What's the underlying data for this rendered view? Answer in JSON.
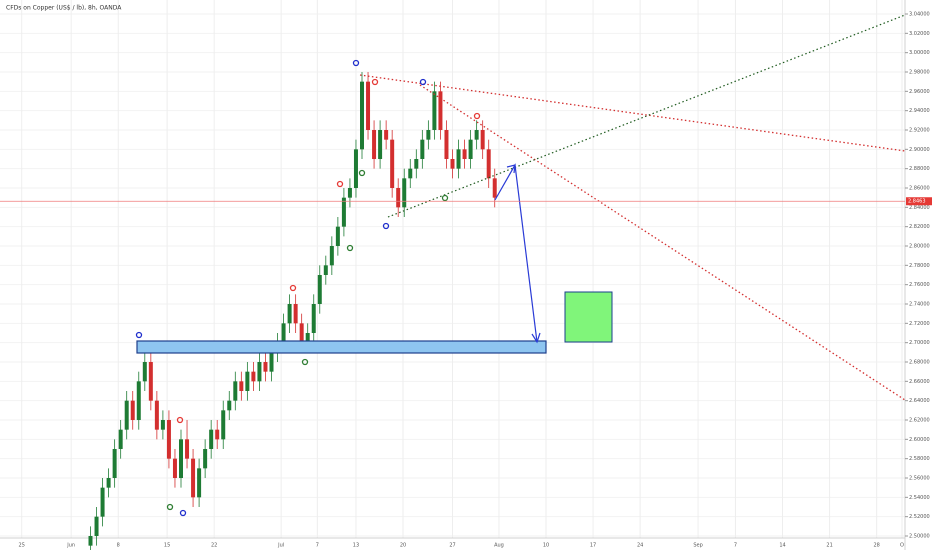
{
  "chart_data": {
    "type": "candlestick",
    "title": "CFDs on Copper (US$ / lb), 8h, OANDA",
    "up_color": "#1e7b34",
    "down_color": "#d32f2f",
    "ohlc": [
      [
        2.49,
        2.51,
        2.48,
        2.5
      ],
      [
        2.5,
        2.53,
        2.49,
        2.52
      ],
      [
        2.52,
        2.56,
        2.51,
        2.55
      ],
      [
        2.55,
        2.57,
        2.54,
        2.56
      ],
      [
        2.56,
        2.6,
        2.55,
        2.59
      ],
      [
        2.59,
        2.62,
        2.58,
        2.61
      ],
      [
        2.61,
        2.65,
        2.6,
        2.64
      ],
      [
        2.64,
        2.65,
        2.61,
        2.62
      ],
      [
        2.62,
        2.67,
        2.61,
        2.66
      ],
      [
        2.66,
        2.69,
        2.65,
        2.68
      ],
      [
        2.68,
        2.69,
        2.63,
        2.64
      ],
      [
        2.64,
        2.65,
        2.6,
        2.61
      ],
      [
        2.61,
        2.63,
        2.6,
        2.62
      ],
      [
        2.62,
        2.63,
        2.57,
        2.58
      ],
      [
        2.58,
        2.59,
        2.55,
        2.56
      ],
      [
        2.56,
        2.61,
        2.55,
        2.6
      ],
      [
        2.6,
        2.62,
        2.57,
        2.58
      ],
      [
        2.58,
        2.59,
        2.53,
        2.54
      ],
      [
        2.54,
        2.58,
        2.53,
        2.57
      ],
      [
        2.57,
        2.6,
        2.56,
        2.59
      ],
      [
        2.59,
        2.62,
        2.58,
        2.61
      ],
      [
        2.61,
        2.62,
        2.59,
        2.6
      ],
      [
        2.6,
        2.64,
        2.59,
        2.63
      ],
      [
        2.63,
        2.65,
        2.62,
        2.64
      ],
      [
        2.64,
        2.67,
        2.63,
        2.66
      ],
      [
        2.66,
        2.67,
        2.64,
        2.65
      ],
      [
        2.65,
        2.68,
        2.64,
        2.67
      ],
      [
        2.67,
        2.68,
        2.65,
        2.66
      ],
      [
        2.66,
        2.69,
        2.65,
        2.68
      ],
      [
        2.68,
        2.69,
        2.66,
        2.67
      ],
      [
        2.67,
        2.7,
        2.66,
        2.69
      ],
      [
        2.69,
        2.71,
        2.68,
        2.7
      ],
      [
        2.7,
        2.73,
        2.69,
        2.72
      ],
      [
        2.72,
        2.75,
        2.71,
        2.74
      ],
      [
        2.74,
        2.75,
        2.71,
        2.72
      ],
      [
        2.72,
        2.73,
        2.69,
        2.7
      ],
      [
        2.7,
        2.72,
        2.69,
        2.71
      ],
      [
        2.71,
        2.75,
        2.7,
        2.74
      ],
      [
        2.74,
        2.78,
        2.73,
        2.77
      ],
      [
        2.77,
        2.79,
        2.76,
        2.78
      ],
      [
        2.78,
        2.81,
        2.77,
        2.8
      ],
      [
        2.8,
        2.83,
        2.79,
        2.82
      ],
      [
        2.82,
        2.86,
        2.81,
        2.85
      ],
      [
        2.85,
        2.87,
        2.84,
        2.86
      ],
      [
        2.86,
        2.91,
        2.85,
        2.9
      ],
      [
        2.9,
        2.98,
        2.89,
        2.97
      ],
      [
        2.97,
        2.98,
        2.91,
        2.92
      ],
      [
        2.92,
        2.93,
        2.88,
        2.89
      ],
      [
        2.89,
        2.93,
        2.88,
        2.92
      ],
      [
        2.92,
        2.93,
        2.9,
        2.91
      ],
      [
        2.91,
        2.92,
        2.85,
        2.86
      ],
      [
        2.86,
        2.87,
        2.83,
        2.84
      ],
      [
        2.84,
        2.88,
        2.83,
        2.87
      ],
      [
        2.87,
        2.89,
        2.86,
        2.88
      ],
      [
        2.88,
        2.9,
        2.87,
        2.89
      ],
      [
        2.89,
        2.92,
        2.88,
        2.91
      ],
      [
        2.91,
        2.93,
        2.9,
        2.92
      ],
      [
        2.92,
        2.97,
        2.91,
        2.96
      ],
      [
        2.96,
        2.97,
        2.91,
        2.92
      ],
      [
        2.92,
        2.93,
        2.88,
        2.89
      ],
      [
        2.89,
        2.9,
        2.87,
        2.88
      ],
      [
        2.88,
        2.91,
        2.87,
        2.9
      ],
      [
        2.9,
        2.91,
        2.88,
        2.89
      ],
      [
        2.89,
        2.92,
        2.88,
        2.91
      ],
      [
        2.91,
        2.93,
        2.9,
        2.92
      ],
      [
        2.92,
        2.93,
        2.89,
        2.9
      ],
      [
        2.9,
        2.91,
        2.86,
        2.87
      ],
      [
        2.87,
        2.88,
        2.84,
        2.85
      ]
    ],
    "xlim": [
      -15,
      135
    ],
    "xticks": [
      {
        "value": -11.4,
        "label": "25"
      },
      {
        "value": -3.2,
        "label": "Jun"
      },
      {
        "value": 4.6,
        "label": "8"
      },
      {
        "value": 12.7,
        "label": "15"
      },
      {
        "value": 20.5,
        "label": "22"
      },
      {
        "value": 31.6,
        "label": "Jul"
      },
      {
        "value": 37.6,
        "label": "7"
      },
      {
        "value": 44,
        "label": "13"
      },
      {
        "value": 51.8,
        "label": "20"
      },
      {
        "value": 60,
        "label": "27"
      },
      {
        "value": 67.7,
        "label": "Aug"
      },
      {
        "value": 75.5,
        "label": "10"
      },
      {
        "value": 83.3,
        "label": "17"
      },
      {
        "value": 91.1,
        "label": "24"
      },
      {
        "value": 100.7,
        "label": "Sep"
      },
      {
        "value": 106.9,
        "label": "7"
      },
      {
        "value": 114.7,
        "label": "14"
      },
      {
        "value": 122.5,
        "label": "21"
      },
      {
        "value": 130.3,
        "label": "28"
      },
      {
        "value": 134.5,
        "label": "O"
      }
    ],
    "ylim": [
      2.5,
      3.04
    ],
    "yticks": [
      {
        "value": 2.5,
        "label": "2.50000"
      },
      {
        "value": 2.52,
        "label": "2.52000"
      },
      {
        "value": 2.54,
        "label": "2.54000"
      },
      {
        "value": 2.56,
        "label": "2.56000"
      },
      {
        "value": 2.58,
        "label": "2.58000"
      },
      {
        "value": 2.6,
        "label": "2.60000"
      },
      {
        "value": 2.62,
        "label": "2.62000"
      },
      {
        "value": 2.64,
        "label": "2.64000"
      },
      {
        "value": 2.66,
        "label": "2.66000"
      },
      {
        "value": 2.68,
        "label": "2.68000"
      },
      {
        "value": 2.7,
        "label": "2.70000"
      },
      {
        "value": 2.72,
        "label": "2.72000"
      },
      {
        "value": 2.74,
        "label": "2.74000"
      },
      {
        "value": 2.76,
        "label": "2.76000"
      },
      {
        "value": 2.78,
        "label": "2.78000"
      },
      {
        "value": 2.8,
        "label": "2.80000"
      },
      {
        "value": 2.82,
        "label": "2.82000"
      },
      {
        "value": 2.84,
        "label": "2.84000"
      },
      {
        "value": 2.86,
        "label": "2.86000"
      },
      {
        "value": 2.88,
        "label": "2.88000"
      },
      {
        "value": 2.9,
        "label": "2.90000"
      },
      {
        "value": 2.92,
        "label": "2.92000"
      },
      {
        "value": 2.94,
        "label": "2.94000"
      },
      {
        "value": 2.96,
        "label": "2.96000"
      },
      {
        "value": 2.98,
        "label": "2.98000"
      },
      {
        "value": 3.0,
        "label": "3.00000"
      },
      {
        "value": 3.02,
        "label": "3.02000"
      },
      {
        "value": 3.04,
        "label": "3.04000"
      }
    ],
    "price_line": {
      "value": 2.8463,
      "label": "2.8463"
    },
    "grid": true
  }
}
